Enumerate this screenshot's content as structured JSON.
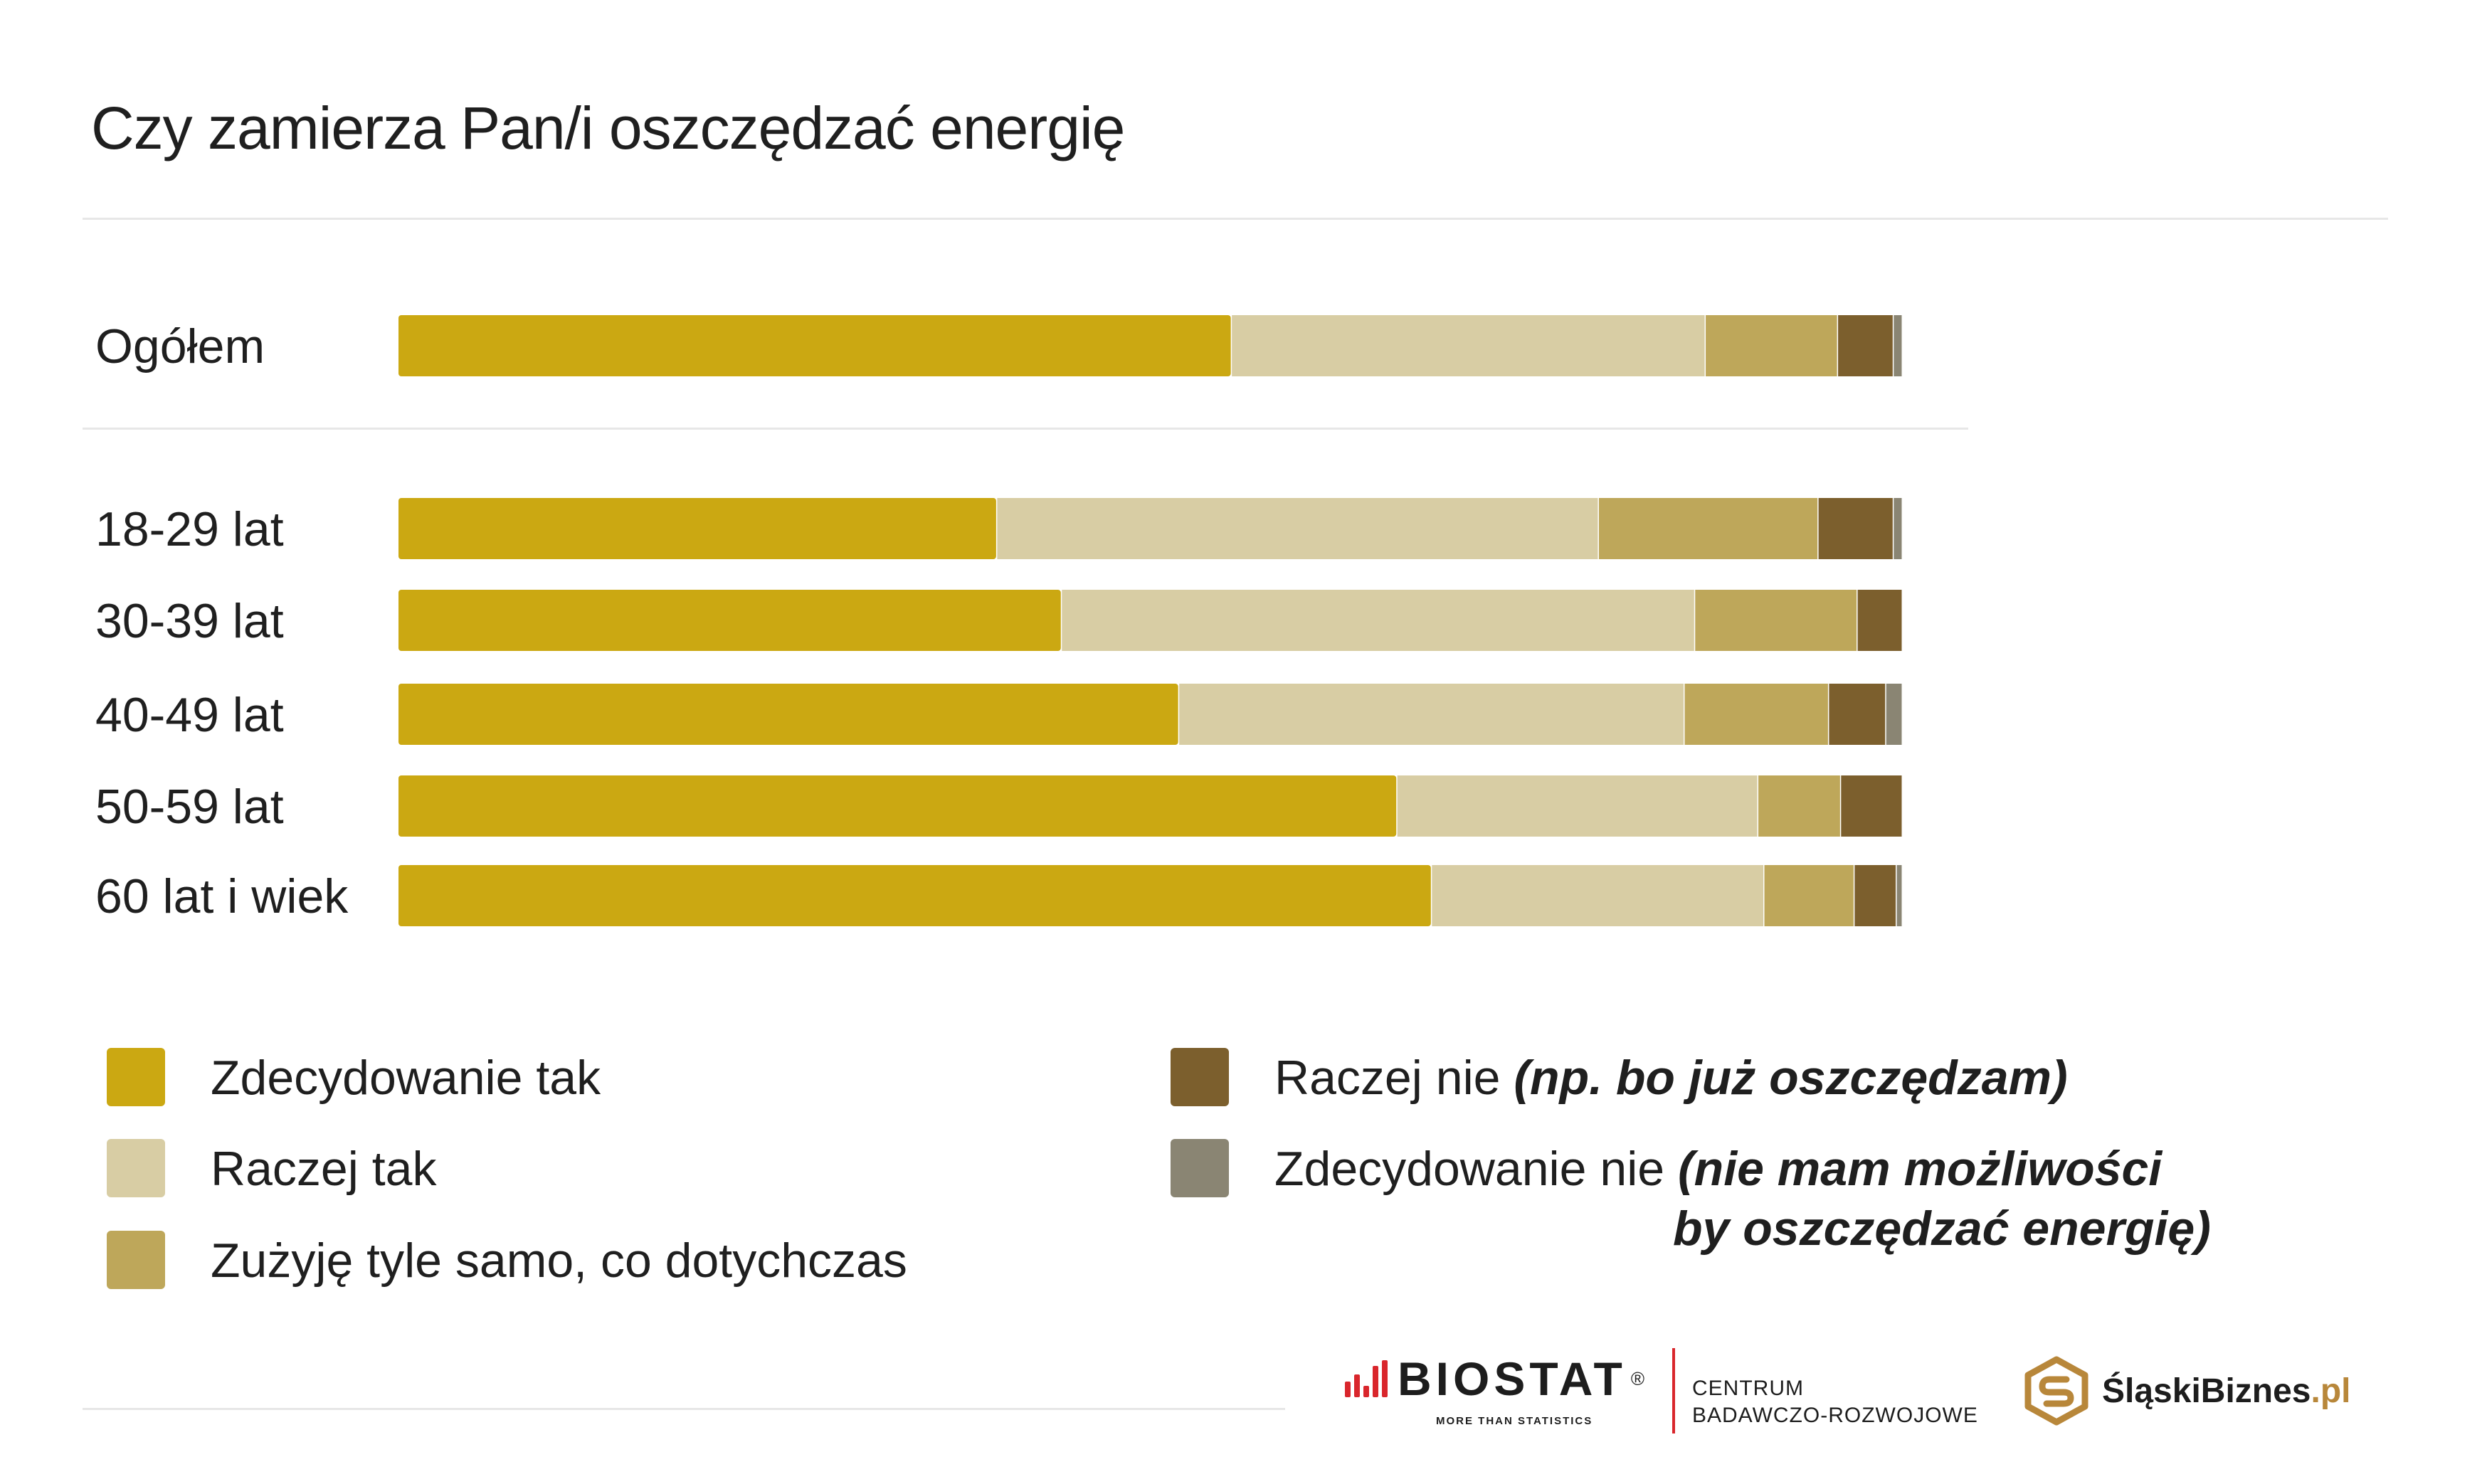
{
  "title": "Czy zamierza Pan/i oszczędzać energię",
  "colors": {
    "zdecydowanie_tak": "#cba812",
    "raczej_tak": "#d8cda4",
    "tyle_samo": "#bea75a",
    "raczej_nie": "#7c5f2d",
    "zdecydowanie_nie": "#8a8573"
  },
  "chart_data": {
    "type": "bar",
    "orientation": "horizontal",
    "stacked": true,
    "categories": [
      "Ogółem",
      "18-29 lat",
      "30-39 lat",
      "40-49 lat",
      "50-59 lat",
      "60 lat i wiek"
    ],
    "series": [
      {
        "name": "Zdecydowanie tak",
        "color": "#cba812",
        "values": [
          55.4,
          39.8,
          44.1,
          51.9,
          66.4,
          68.7
        ]
      },
      {
        "name": "Raczej tak",
        "color": "#d8cda4",
        "values": [
          31.5,
          40.0,
          42.1,
          33.6,
          24.0,
          22.1
        ]
      },
      {
        "name": "Zużyję tyle samo, co dotychczas",
        "color": "#bea75a",
        "values": [
          8.8,
          14.6,
          10.8,
          9.6,
          5.5,
          6.0
        ]
      },
      {
        "name": "Raczej nie (np. bo już oszczędzam)",
        "color": "#7c5f2d",
        "values": [
          3.7,
          5.0,
          3.0,
          3.8,
          4.1,
          2.8
        ]
      },
      {
        "name": "Zdecydowanie nie (nie mam możliwości by oszczędzać energię)",
        "color": "#8a8573",
        "values": [
          0.6,
          0.6,
          0.0,
          1.1,
          0.0,
          0.4
        ]
      }
    ],
    "xlim": [
      0,
      100
    ],
    "grid": false,
    "legend_position": "bottom"
  },
  "legend": {
    "items": [
      {
        "label": "Zdecydowanie tak",
        "note": "",
        "note_line2": "",
        "color": "#cba812"
      },
      {
        "label": "Raczej tak",
        "note": "",
        "note_line2": "",
        "color": "#d8cda4"
      },
      {
        "label": "Zużyję tyle samo, co dotychczas",
        "note": "",
        "note_line2": "",
        "color": "#bea75a"
      },
      {
        "label": "Raczej nie ",
        "note": "(np. bo już oszczędzam)",
        "note_line2": "",
        "color": "#7c5f2d"
      },
      {
        "label": "Zdecydowanie nie ",
        "note": "(nie mam możliwości",
        "note_line2": "by oszczędzać energię)",
        "color": "#8a8573"
      }
    ]
  },
  "logos": {
    "biostat": {
      "word": "BIOSTAT",
      "reg": "®",
      "tagline": "MORE THAN STATISTICS"
    },
    "centrum": {
      "line1": "CENTRUM",
      "line2": "BADAWCZO-ROZWOJOWE"
    },
    "slaski": {
      "word": "ŚląskiBiznes",
      "suffix": ".pl"
    }
  }
}
